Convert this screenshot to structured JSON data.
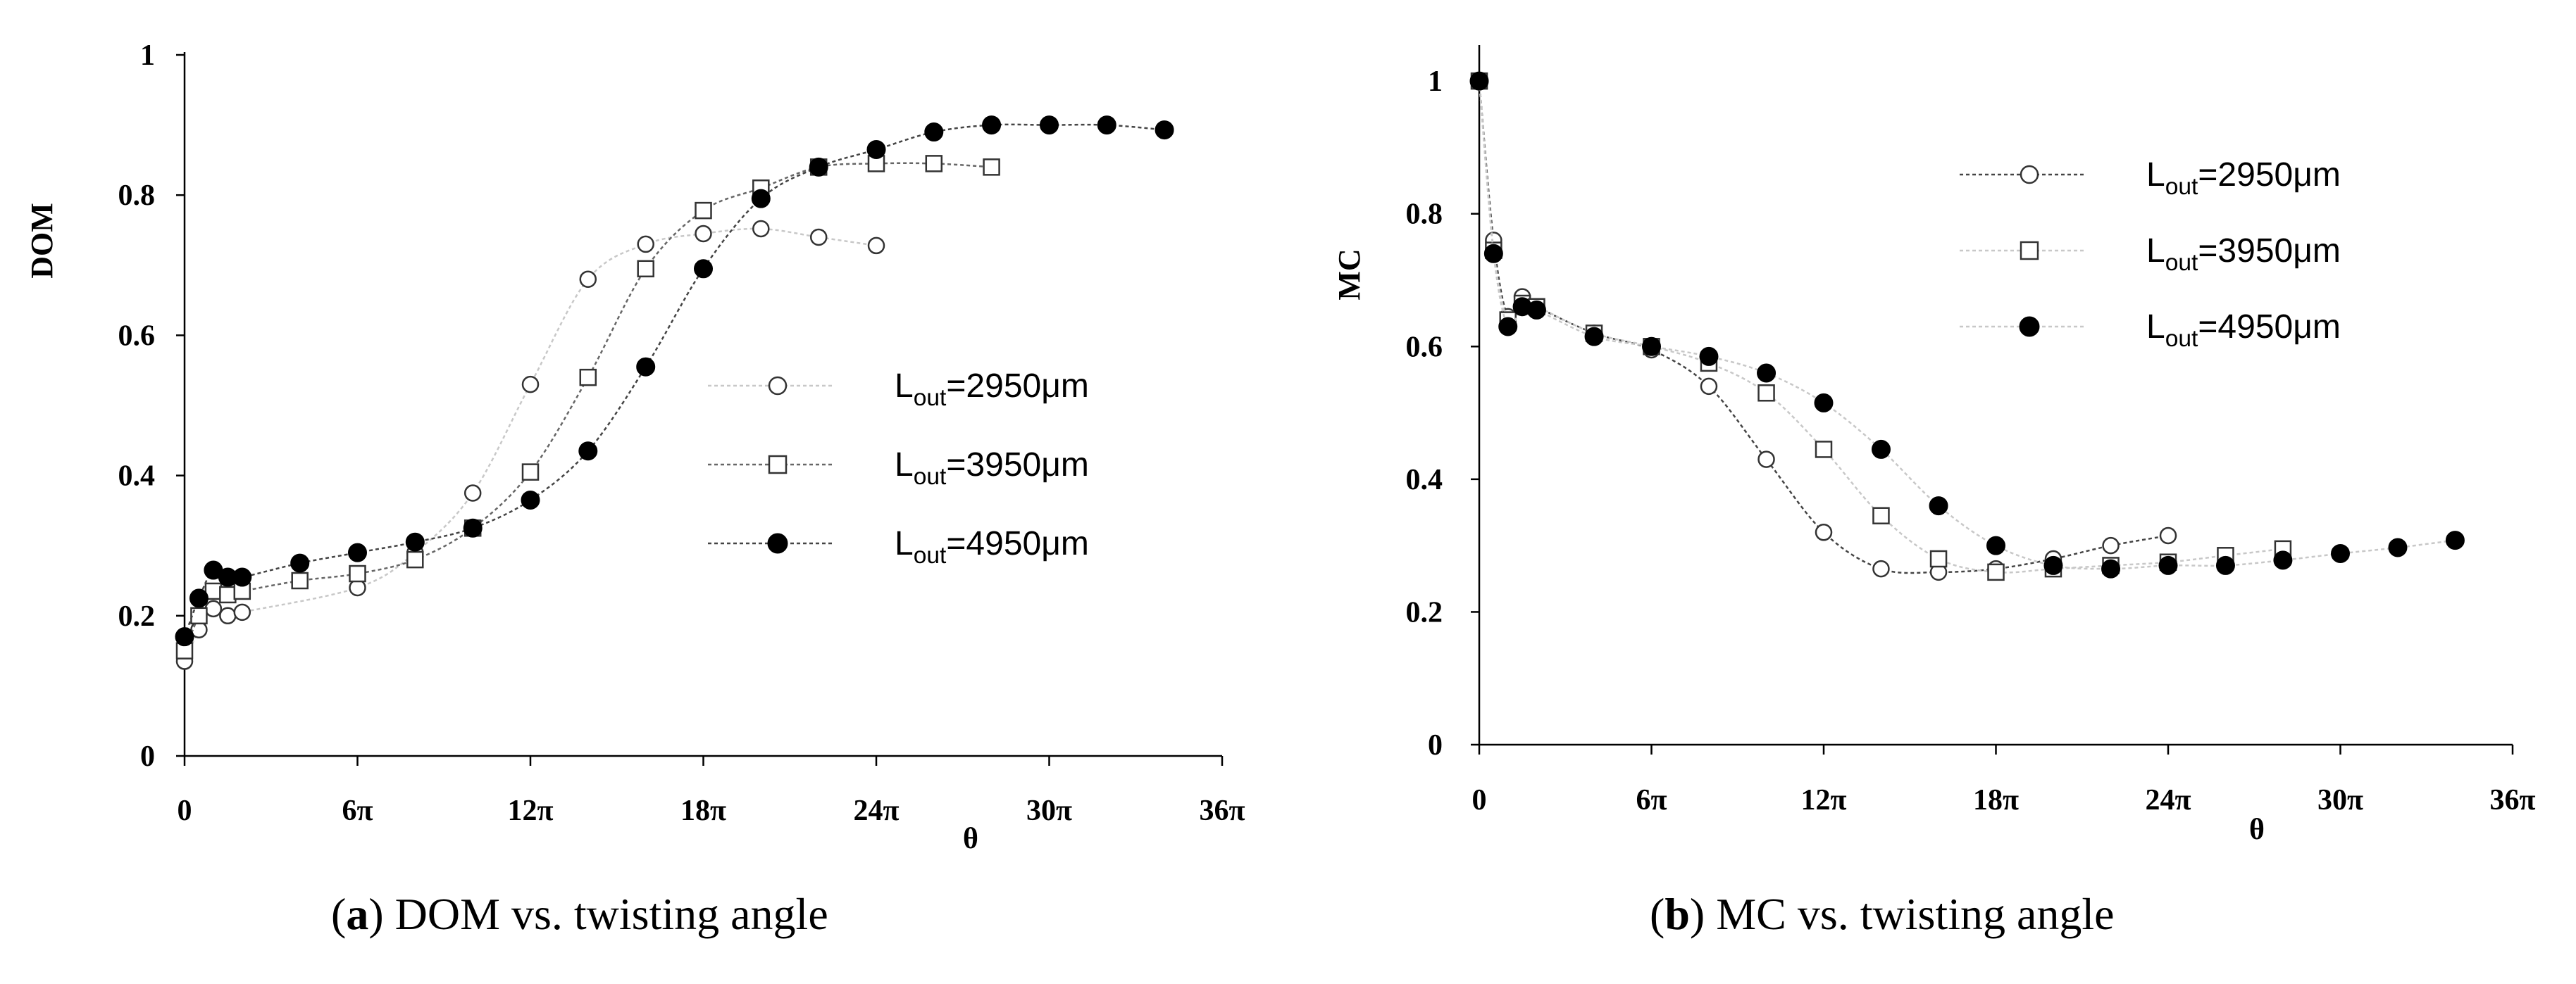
{
  "chart_data": [
    {
      "type": "line",
      "panel": "a",
      "ylabel": "DOM",
      "xlabel": "θ",
      "xlim": [
        0,
        113.1
      ],
      "ylim": [
        0,
        1
      ],
      "yticks": [
        0,
        0.2,
        0.4,
        0.6,
        0.8,
        1
      ],
      "ytick_labels": [
        "0",
        "0.2",
        "0.4",
        "0.6",
        "0.8",
        "1"
      ],
      "xticks": [
        0,
        18.85,
        37.7,
        56.55,
        75.4,
        94.25,
        113.1
      ],
      "xtick_labels": [
        "0",
        "6π",
        "12π",
        "18π",
        "24π",
        "30π",
        "36π"
      ],
      "legend_position": "center-right",
      "series": [
        {
          "name": "Lout=2950μm",
          "label_main": "L",
          "label_sub": "out",
          "label_tail": "=2950μm",
          "marker": "open-circle",
          "line_style": "dotted",
          "line_color": "#c8c8c8",
          "x": [
            0,
            1.57,
            3.14,
            4.71,
            6.28,
            18.85,
            25.13,
            31.42,
            37.7,
            43.98,
            50.27,
            56.55,
            62.83,
            69.12,
            75.4
          ],
          "y": [
            0.135,
            0.18,
            0.21,
            0.2,
            0.205,
            0.24,
            0.29,
            0.375,
            0.53,
            0.68,
            0.73,
            0.745,
            0.752,
            0.74,
            0.728
          ]
        },
        {
          "name": "Lout=3950μm",
          "label_main": "L",
          "label_sub": "out",
          "label_tail": "=3950μm",
          "marker": "open-square",
          "line_style": "dotted",
          "line_color": "#666666",
          "x": [
            0,
            1.57,
            3.14,
            4.71,
            6.28,
            12.57,
            18.85,
            25.13,
            31.42,
            37.7,
            43.98,
            50.27,
            56.55,
            62.83,
            69.12,
            75.4,
            81.68,
            87.96
          ],
          "y": [
            0.15,
            0.2,
            0.235,
            0.23,
            0.235,
            0.25,
            0.26,
            0.28,
            0.325,
            0.405,
            0.54,
            0.695,
            0.778,
            0.81,
            0.84,
            0.845,
            0.845,
            0.84
          ]
        },
        {
          "name": "Lout=4950μm",
          "label_main": "L",
          "label_sub": "out",
          "label_tail": "=4950μm",
          "marker": "filled-circle",
          "line_style": "dotted",
          "line_color": "#444444",
          "x": [
            0,
            1.57,
            3.14,
            4.71,
            6.28,
            12.57,
            18.85,
            25.13,
            31.42,
            37.7,
            43.98,
            50.27,
            56.55,
            62.83,
            69.12,
            75.4,
            81.68,
            87.96,
            94.25,
            100.53,
            106.81
          ],
          "y": [
            0.17,
            0.225,
            0.265,
            0.255,
            0.255,
            0.275,
            0.29,
            0.305,
            0.325,
            0.365,
            0.435,
            0.555,
            0.695,
            0.795,
            0.84,
            0.865,
            0.89,
            0.9,
            0.9,
            0.9,
            0.893
          ]
        }
      ]
    },
    {
      "type": "line",
      "panel": "b",
      "ylabel": "MC",
      "xlabel": "θ",
      "xlim": [
        0,
        113.1
      ],
      "ylim": [
        0,
        1.05
      ],
      "yticks": [
        0,
        0.2,
        0.4,
        0.6,
        0.8,
        1
      ],
      "ytick_labels": [
        "0",
        "0.2",
        "0.4",
        "0.6",
        "0.8",
        "1"
      ],
      "xticks": [
        0,
        18.85,
        37.7,
        56.55,
        75.4,
        94.25,
        113.1
      ],
      "xtick_labels": [
        "0",
        "6π",
        "12π",
        "18π",
        "24π",
        "30π",
        "36π"
      ],
      "legend_position": "top-right",
      "series": [
        {
          "name": "Lout=2950μm",
          "label_main": "L",
          "label_sub": "out",
          "label_tail": "=2950μm",
          "marker": "open-circle",
          "line_style": "dotted",
          "line_color": "#444444",
          "x": [
            0,
            1.57,
            3.14,
            4.71,
            6.28,
            12.57,
            18.85,
            25.13,
            31.42,
            37.7,
            43.98,
            50.27,
            56.55,
            62.83,
            69.12,
            75.4
          ],
          "y": [
            1.0,
            0.76,
            0.645,
            0.675,
            0.66,
            0.62,
            0.595,
            0.54,
            0.43,
            0.32,
            0.265,
            0.26,
            0.265,
            0.28,
            0.3,
            0.315
          ]
        },
        {
          "name": "Lout=3950μm",
          "label_main": "L",
          "label_sub": "out",
          "label_tail": "=3950μm",
          "marker": "open-square",
          "line_style": "dotted",
          "line_color": "#c8c8c8",
          "x": [
            0,
            1.57,
            3.14,
            4.71,
            6.28,
            12.57,
            18.85,
            25.13,
            31.42,
            37.7,
            43.98,
            50.27,
            56.55,
            62.83,
            69.12,
            75.4,
            81.68,
            87.96
          ],
          "y": [
            1.0,
            0.745,
            0.64,
            0.665,
            0.66,
            0.62,
            0.6,
            0.575,
            0.53,
            0.445,
            0.345,
            0.28,
            0.26,
            0.265,
            0.27,
            0.275,
            0.285,
            0.295
          ]
        },
        {
          "name": "Lout=4950μm",
          "label_main": "L",
          "label_sub": "out",
          "label_tail": "=4950μm",
          "marker": "filled-circle",
          "line_style": "dotted",
          "line_color": "#c8c8c8",
          "x": [
            0,
            1.57,
            3.14,
            4.71,
            6.28,
            12.57,
            18.85,
            25.13,
            31.42,
            37.7,
            43.98,
            50.27,
            56.55,
            62.83,
            69.12,
            75.4,
            81.68,
            87.96,
            94.25,
            100.53,
            106.81
          ],
          "y": [
            1.0,
            0.74,
            0.63,
            0.66,
            0.655,
            0.615,
            0.6,
            0.585,
            0.56,
            0.515,
            0.445,
            0.36,
            0.3,
            0.27,
            0.265,
            0.27,
            0.27,
            0.278,
            0.288,
            0.297,
            0.308
          ]
        }
      ]
    }
  ],
  "captions": [
    {
      "panel_letter": "a",
      "open_paren": "(",
      "close_paren": ")",
      "text": " DOM vs. twisting angle"
    },
    {
      "panel_letter": "b",
      "open_paren": "(",
      "close_paren": ")",
      "text": " MC vs. twisting angle"
    }
  ]
}
